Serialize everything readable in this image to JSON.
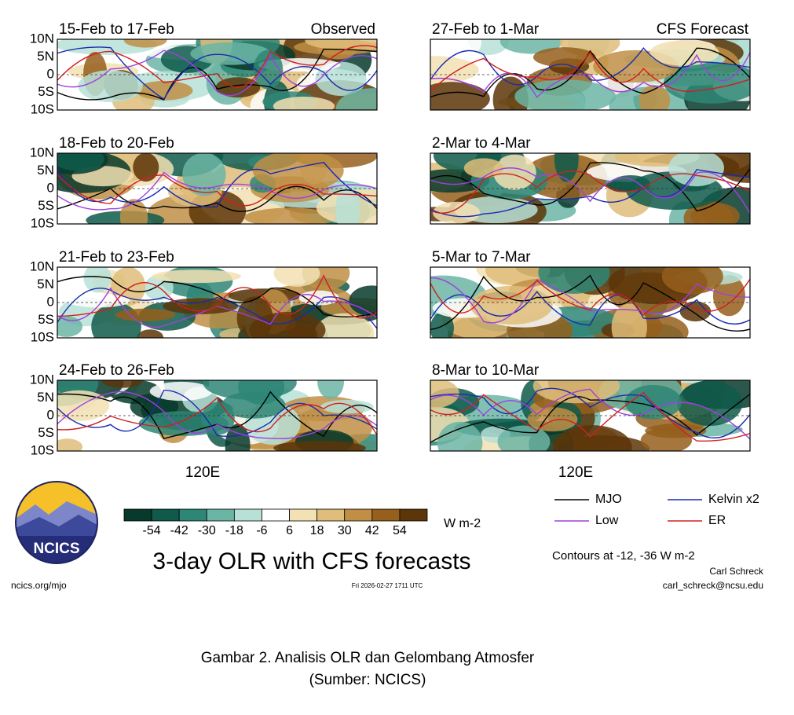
{
  "columns": [
    {
      "header": "Observed",
      "panels": [
        "15-Feb to 17-Feb",
        "18-Feb to 20-Feb",
        "21-Feb to 23-Feb",
        "24-Feb to 26-Feb"
      ]
    },
    {
      "header": "CFS Forecast",
      "panels": [
        "27-Feb to 1-Mar",
        "2-Mar to 4-Mar",
        "5-Mar to 7-Mar",
        "8-Mar to 10-Mar"
      ]
    }
  ],
  "lat_labels": [
    "10N",
    "5N",
    "0",
    "5S",
    "10S"
  ],
  "lon_label": "120E",
  "colorbar": {
    "colors": [
      "#07392c",
      "#0f5a4b",
      "#2e8676",
      "#6bb5a5",
      "#b7e0d7",
      "#ffffff",
      "#f2e1b3",
      "#dfbd7a",
      "#c08f45",
      "#955f1c",
      "#5c3508"
    ],
    "ticks": [
      "-54",
      "-42",
      "-30",
      "-18",
      "-6",
      "6",
      "18",
      "30",
      "42",
      "54"
    ],
    "unit": "W m-2"
  },
  "legend": [
    {
      "name": "MJO",
      "color": "#000000"
    },
    {
      "name": "Kelvin x2",
      "color": "#1a2bb0"
    },
    {
      "name": "Low",
      "color": "#a040e0"
    },
    {
      "name": "ER",
      "color": "#d02020"
    }
  ],
  "logo": "NCICS",
  "title": "3-day OLR with CFS forecasts",
  "contours_note": "Contours at -12, -36 W m-2",
  "author": "Carl Schreck",
  "email": "carl_schreck@ncsu.edu",
  "website": "ncics.org/mjo",
  "timestamp": "Fri 2026-02-27 1711 UTC",
  "caption": [
    "Gambar 2. Analisis OLR dan Gelombang Atmosfer",
    "(Sumber: NCICS)"
  ]
}
